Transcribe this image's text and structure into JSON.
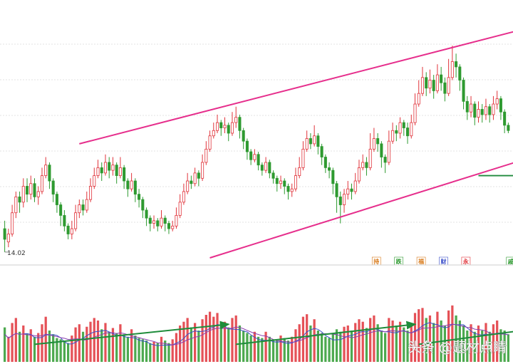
{
  "chart_data": {
    "type": "candlestick",
    "title": "",
    "low_marker": "14.02",
    "colors": {
      "up": "#e0333a",
      "down": "#2e9a30",
      "trend_channel": "#e62e8c",
      "support": "#1f8a3c",
      "annotation_arrow": "#1e8c3a",
      "ma_short": "#3b4fc9",
      "ma_long": "#8a3fb0"
    },
    "candles": [
      [
        14.9,
        14.5,
        15.2,
        14.02
      ],
      [
        14.4,
        14.7,
        14.9,
        14.2
      ],
      [
        14.7,
        15.5,
        15.8,
        14.6
      ],
      [
        15.5,
        16.1,
        16.3,
        15.3
      ],
      [
        16.1,
        15.9,
        16.3,
        15.5
      ],
      [
        15.9,
        16.5,
        16.8,
        15.7
      ],
      [
        16.5,
        16.2,
        16.8,
        15.9
      ],
      [
        16.2,
        16.6,
        16.9,
        16.0
      ],
      [
        16.6,
        16.1,
        16.8,
        15.9
      ],
      [
        16.1,
        16.3,
        16.5,
        15.8
      ],
      [
        16.3,
        16.9,
        17.2,
        16.2
      ],
      [
        16.9,
        17.3,
        17.6,
        16.8
      ],
      [
        17.3,
        16.7,
        17.4,
        16.4
      ],
      [
        16.7,
        16.2,
        16.8,
        15.9
      ],
      [
        16.2,
        15.8,
        16.3,
        15.5
      ],
      [
        15.8,
        15.4,
        15.9,
        15.0
      ],
      [
        15.4,
        15.0,
        15.6,
        14.8
      ],
      [
        15.0,
        14.7,
        15.1,
        14.5
      ],
      [
        14.7,
        14.9,
        15.2,
        14.5
      ],
      [
        14.9,
        15.5,
        15.8,
        14.8
      ],
      [
        15.5,
        15.8,
        16.0,
        15.3
      ],
      [
        15.8,
        15.6,
        16.0,
        15.4
      ],
      [
        15.6,
        16.0,
        16.3,
        15.5
      ],
      [
        16.0,
        16.5,
        16.8,
        15.9
      ],
      [
        16.5,
        16.9,
        17.2,
        16.4
      ],
      [
        16.9,
        17.2,
        17.5,
        16.8
      ],
      [
        17.2,
        17.0,
        17.4,
        16.7
      ],
      [
        17.0,
        17.4,
        17.7,
        16.9
      ],
      [
        17.4,
        17.1,
        17.6,
        16.8
      ],
      [
        17.1,
        17.3,
        17.6,
        16.9
      ],
      [
        17.3,
        16.9,
        17.4,
        16.6
      ],
      [
        16.9,
        17.2,
        17.6,
        16.8
      ],
      [
        17.2,
        16.7,
        17.3,
        16.4
      ],
      [
        16.7,
        16.4,
        16.8,
        16.1
      ],
      [
        16.4,
        16.7,
        17.0,
        16.3
      ],
      [
        16.7,
        16.2,
        16.8,
        15.9
      ],
      [
        16.2,
        16.0,
        16.4,
        15.7
      ],
      [
        16.0,
        15.6,
        16.1,
        15.3
      ],
      [
        15.6,
        15.3,
        15.7,
        15.0
      ],
      [
        15.3,
        15.1,
        15.4,
        14.8
      ],
      [
        15.1,
        15.2,
        15.4,
        14.9
      ],
      [
        15.2,
        15.0,
        15.3,
        14.8
      ],
      [
        15.0,
        15.3,
        15.6,
        14.9
      ],
      [
        15.3,
        15.1,
        15.4,
        14.8
      ],
      [
        15.1,
        14.9,
        15.2,
        14.7
      ],
      [
        14.9,
        15.0,
        15.2,
        14.8
      ],
      [
        15.0,
        15.4,
        15.7,
        14.9
      ],
      [
        15.4,
        15.9,
        16.2,
        15.3
      ],
      [
        15.9,
        16.3,
        16.6,
        15.8
      ],
      [
        16.3,
        16.7,
        17.0,
        16.2
      ],
      [
        16.7,
        16.6,
        16.9,
        16.4
      ],
      [
        16.6,
        17.0,
        17.2,
        16.5
      ],
      [
        17.0,
        16.8,
        17.1,
        16.5
      ],
      [
        16.8,
        17.4,
        17.7,
        16.7
      ],
      [
        17.4,
        17.9,
        18.2,
        17.3
      ],
      [
        17.9,
        18.4,
        18.6,
        17.8
      ],
      [
        18.4,
        18.6,
        18.9,
        18.3
      ],
      [
        18.6,
        18.9,
        19.2,
        18.5
      ],
      [
        18.9,
        18.7,
        19.0,
        18.4
      ],
      [
        18.7,
        18.8,
        19.1,
        18.5
      ],
      [
        18.8,
        18.5,
        18.9,
        18.2
      ],
      [
        18.5,
        18.9,
        19.3,
        18.4
      ],
      [
        18.9,
        19.1,
        19.5,
        18.7
      ],
      [
        19.1,
        18.6,
        19.2,
        18.3
      ],
      [
        18.6,
        18.2,
        18.7,
        17.9
      ],
      [
        18.2,
        17.8,
        18.3,
        17.5
      ],
      [
        17.8,
        17.5,
        17.9,
        17.3
      ],
      [
        17.5,
        17.7,
        17.9,
        17.4
      ],
      [
        17.7,
        17.3,
        17.8,
        17.1
      ],
      [
        17.3,
        17.1,
        17.4,
        16.9
      ],
      [
        17.1,
        17.4,
        17.6,
        17.0
      ],
      [
        17.4,
        17.0,
        17.5,
        16.8
      ],
      [
        17.0,
        16.8,
        17.1,
        16.6
      ],
      [
        16.8,
        16.6,
        16.9,
        16.3
      ],
      [
        16.6,
        16.7,
        16.9,
        16.4
      ],
      [
        16.7,
        16.5,
        16.8,
        16.2
      ],
      [
        16.5,
        16.3,
        16.6,
        16.0
      ],
      [
        16.3,
        16.4,
        16.6,
        16.1
      ],
      [
        16.4,
        16.9,
        17.2,
        16.3
      ],
      [
        16.9,
        17.2,
        17.6,
        16.8
      ],
      [
        17.2,
        17.9,
        18.2,
        17.1
      ],
      [
        17.9,
        18.3,
        18.6,
        17.8
      ],
      [
        18.3,
        18.1,
        18.5,
        17.9
      ],
      [
        18.1,
        18.4,
        18.8,
        18.0
      ],
      [
        18.4,
        18.0,
        18.5,
        17.7
      ],
      [
        18.0,
        17.6,
        18.1,
        17.3
      ],
      [
        17.6,
        17.2,
        17.7,
        17.0
      ],
      [
        17.2,
        17.1,
        17.4,
        16.8
      ],
      [
        17.1,
        16.6,
        17.2,
        16.2
      ],
      [
        16.6,
        16.1,
        16.7,
        15.5
      ],
      [
        16.1,
        15.8,
        16.3,
        15.1
      ],
      [
        15.8,
        16.2,
        16.4,
        15.5
      ],
      [
        16.2,
        16.4,
        16.7,
        16.0
      ],
      [
        16.4,
        16.3,
        16.6,
        16.0
      ],
      [
        16.3,
        16.7,
        17.0,
        16.2
      ],
      [
        16.7,
        17.2,
        17.5,
        16.6
      ],
      [
        17.2,
        17.4,
        17.7,
        17.1
      ],
      [
        17.4,
        17.2,
        17.6,
        16.9
      ],
      [
        17.2,
        17.9,
        18.5,
        17.1
      ],
      [
        17.9,
        18.3,
        18.7,
        17.8
      ],
      [
        18.3,
        18.1,
        18.5,
        17.8
      ],
      [
        18.1,
        17.6,
        18.2,
        17.2
      ],
      [
        17.6,
        17.4,
        17.7,
        17.0
      ],
      [
        17.4,
        18.2,
        18.6,
        17.3
      ],
      [
        18.2,
        18.6,
        18.9,
        18.1
      ],
      [
        18.6,
        18.5,
        18.8,
        18.2
      ],
      [
        18.5,
        18.9,
        19.1,
        18.3
      ],
      [
        18.9,
        18.7,
        19.0,
        18.4
      ],
      [
        18.7,
        18.4,
        18.9,
        18.1
      ],
      [
        18.4,
        18.9,
        19.2,
        18.3
      ],
      [
        18.9,
        19.6,
        20.0,
        18.8
      ],
      [
        19.6,
        20.0,
        20.5,
        19.5
      ],
      [
        20.0,
        20.6,
        21.0,
        19.9
      ],
      [
        20.6,
        20.2,
        20.8,
        19.9
      ],
      [
        20.2,
        20.5,
        20.9,
        20.0
      ],
      [
        20.5,
        20.1,
        20.7,
        19.8
      ],
      [
        20.1,
        20.7,
        21.1,
        20.0
      ],
      [
        20.7,
        20.4,
        21.0,
        20.1
      ],
      [
        20.4,
        20.0,
        20.6,
        19.7
      ],
      [
        20.0,
        20.6,
        21.3,
        19.9
      ],
      [
        20.6,
        21.2,
        21.8,
        20.5
      ],
      [
        21.2,
        21.0,
        21.5,
        20.6
      ],
      [
        21.0,
        20.5,
        21.1,
        20.1
      ],
      [
        20.5,
        19.7,
        20.6,
        19.4
      ],
      [
        19.7,
        19.3,
        19.9,
        19.0
      ],
      [
        19.3,
        19.6,
        19.9,
        19.1
      ],
      [
        19.6,
        19.1,
        19.7,
        18.8
      ],
      [
        19.1,
        19.4,
        19.7,
        18.9
      ],
      [
        19.4,
        19.2,
        19.6,
        18.9
      ],
      [
        19.2,
        19.5,
        19.8,
        19.0
      ],
      [
        19.5,
        19.2,
        19.6,
        18.9
      ],
      [
        19.2,
        19.6,
        19.9,
        19.0
      ],
      [
        19.6,
        19.8,
        20.1,
        19.4
      ],
      [
        19.8,
        19.3,
        19.9,
        19.0
      ],
      [
        19.3,
        18.8,
        19.4,
        18.5
      ],
      [
        18.8,
        18.6,
        18.9,
        18.5
      ]
    ],
    "volumes": [
      55,
      40,
      62,
      70,
      48,
      58,
      45,
      52,
      40,
      46,
      60,
      72,
      50,
      44,
      38,
      36,
      32,
      30,
      42,
      55,
      60,
      48,
      56,
      64,
      70,
      66,
      52,
      62,
      48,
      54,
      46,
      60,
      44,
      40,
      52,
      42,
      38,
      36,
      34,
      30,
      32,
      30,
      40,
      34,
      30,
      36,
      46,
      58,
      64,
      70,
      55,
      62,
      50,
      68,
      75,
      80,
      72,
      78,
      60,
      64,
      55,
      70,
      74,
      58,
      50,
      46,
      42,
      48,
      40,
      38,
      48,
      40,
      36,
      34,
      42,
      38,
      34,
      40,
      52,
      60,
      72,
      76,
      58,
      68,
      50,
      46,
      40,
      38,
      44,
      52,
      48,
      56,
      58,
      50,
      62,
      68,
      64,
      54,
      70,
      74,
      60,
      50,
      46,
      70,
      66,
      58,
      64,
      55,
      50,
      62,
      78,
      84,
      86,
      70,
      74,
      62,
      80,
      66,
      58,
      82,
      90,
      74,
      66,
      58,
      50,
      60,
      48,
      58,
      50,
      62,
      48,
      60,
      66,
      52,
      50,
      44
    ],
    "ylim": [
      13.8,
      23.2
    ],
    "vol_max": 100,
    "trend_channel": {
      "upper": {
        "from": {
          "index": 20,
          "price": 18.1
        },
        "to": {
          "index": 155,
          "price": 23.0
        }
      },
      "lower": {
        "from": {
          "index": 55,
          "price": 13.8
        },
        "to": {
          "index": 155,
          "price": 18.2
        }
      }
    },
    "support_line": {
      "price": 16.9,
      "from_index": 128,
      "to_index": 155
    },
    "signal_tags": [
      {
        "index": 128,
        "text": "戚",
        "color": "#2e9a30"
      },
      {
        "index": 116,
        "text": "永",
        "color": "#e0333a"
      },
      {
        "index": 110,
        "text": "财",
        "color": "#3b4fc9"
      },
      {
        "index": 104,
        "text": "福",
        "color": "#d87a1a"
      },
      {
        "index": 98,
        "text": "跌",
        "color": "#2e9a30"
      },
      {
        "index": 92,
        "text": "持",
        "color": "#d87a1a"
      }
    ]
  },
  "watermark": "头条 @题材点睛"
}
